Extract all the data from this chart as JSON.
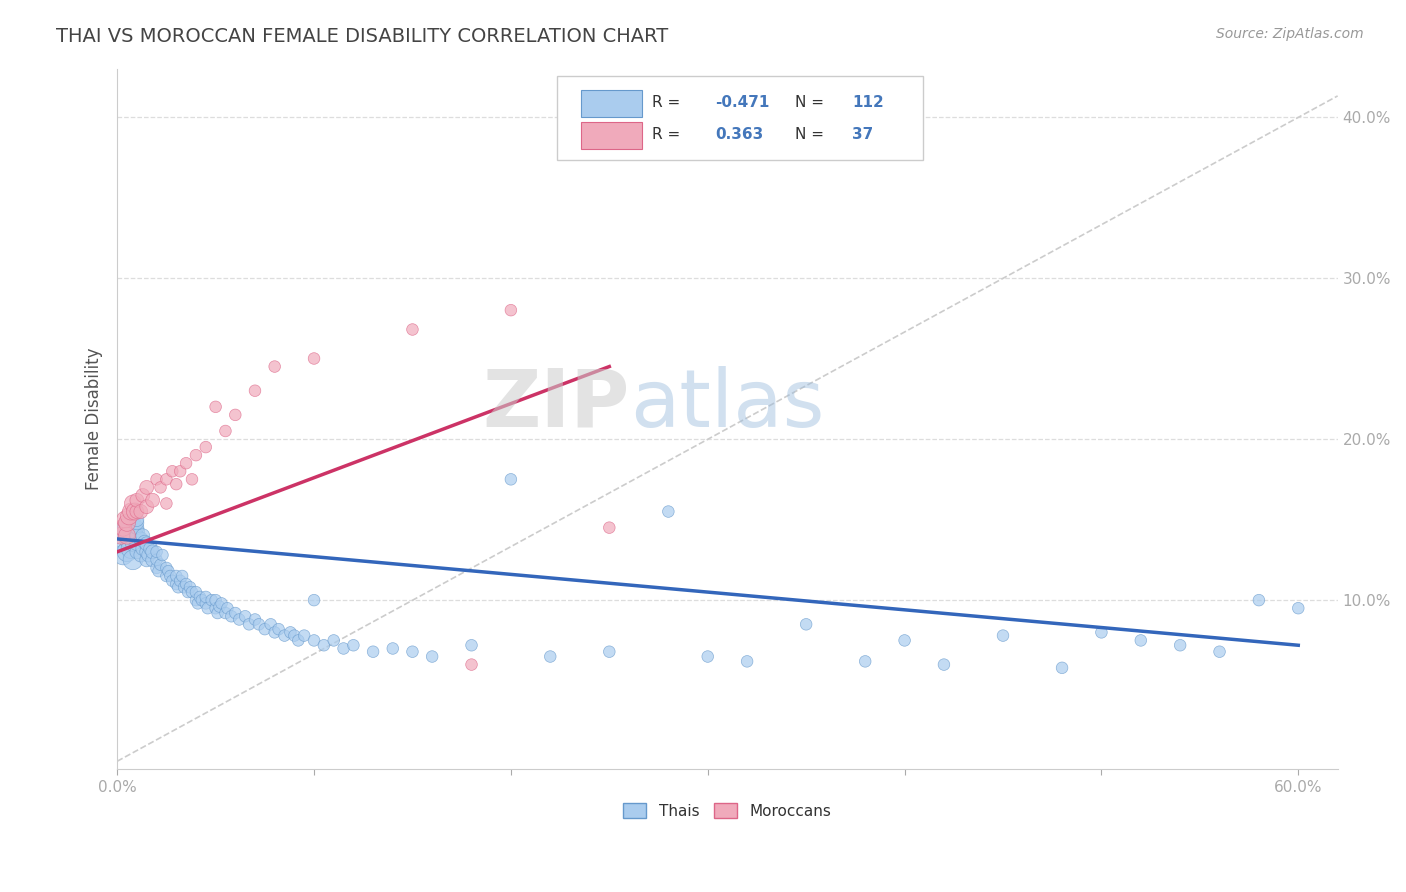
{
  "title": "THAI VS MOROCCAN FEMALE DISABILITY CORRELATION CHART",
  "source_text": "Source: ZipAtlas.com",
  "ylabel": "Female Disability",
  "xlim": [
    0.0,
    0.62
  ],
  "ylim": [
    -0.005,
    0.43
  ],
  "xticks": [
    0.0,
    0.1,
    0.2,
    0.3,
    0.4,
    0.5,
    0.6
  ],
  "xticklabels": [
    "0.0%",
    "",
    "",
    "",
    "",
    "",
    "60.0%"
  ],
  "ytick_positions": [
    0.1,
    0.2,
    0.3,
    0.4
  ],
  "ytick_labels": [
    "10.0%",
    "20.0%",
    "30.0%",
    "40.0%"
  ],
  "thai_color": "#aaccee",
  "moroccan_color": "#f0aabb",
  "thai_edge_color": "#6699cc",
  "moroccan_edge_color": "#dd6688",
  "thai_line_color": "#3366bb",
  "moroccan_line_color": "#cc3366",
  "legend_R1": "-0.471",
  "legend_N1": "112",
  "legend_R2": "0.363",
  "legend_N2": "37",
  "watermark_zip": "ZIP",
  "watermark_atlas": "atlas",
  "background_color": "#ffffff",
  "title_color": "#444444",
  "axis_color": "#4477bb",
  "grid_color": "#dddddd",
  "diag_color": "#cccccc",
  "thai_scatter_x": [
    0.002,
    0.003,
    0.004,
    0.005,
    0.005,
    0.006,
    0.007,
    0.007,
    0.008,
    0.008,
    0.009,
    0.009,
    0.01,
    0.01,
    0.01,
    0.01,
    0.01,
    0.01,
    0.012,
    0.012,
    0.013,
    0.013,
    0.014,
    0.015,
    0.015,
    0.015,
    0.016,
    0.017,
    0.018,
    0.018,
    0.02,
    0.02,
    0.02,
    0.021,
    0.022,
    0.023,
    0.025,
    0.025,
    0.026,
    0.027,
    0.028,
    0.03,
    0.03,
    0.031,
    0.032,
    0.033,
    0.034,
    0.035,
    0.036,
    0.037,
    0.038,
    0.04,
    0.04,
    0.041,
    0.042,
    0.043,
    0.045,
    0.045,
    0.046,
    0.048,
    0.05,
    0.05,
    0.051,
    0.052,
    0.053,
    0.055,
    0.056,
    0.058,
    0.06,
    0.062,
    0.065,
    0.067,
    0.07,
    0.072,
    0.075,
    0.078,
    0.08,
    0.082,
    0.085,
    0.088,
    0.09,
    0.092,
    0.095,
    0.1,
    0.1,
    0.105,
    0.11,
    0.115,
    0.12,
    0.13,
    0.14,
    0.15,
    0.16,
    0.18,
    0.2,
    0.22,
    0.25,
    0.28,
    0.3,
    0.32,
    0.35,
    0.38,
    0.4,
    0.42,
    0.45,
    0.48,
    0.5,
    0.52,
    0.54,
    0.56,
    0.58,
    0.6
  ],
  "thai_scatter_y": [
    0.135,
    0.128,
    0.142,
    0.13,
    0.145,
    0.138,
    0.132,
    0.148,
    0.125,
    0.14,
    0.136,
    0.142,
    0.13,
    0.135,
    0.14,
    0.145,
    0.148,
    0.15,
    0.128,
    0.138,
    0.132,
    0.14,
    0.136,
    0.125,
    0.13,
    0.135,
    0.128,
    0.132,
    0.125,
    0.13,
    0.12,
    0.125,
    0.13,
    0.118,
    0.122,
    0.128,
    0.115,
    0.12,
    0.118,
    0.115,
    0.112,
    0.11,
    0.115,
    0.108,
    0.112,
    0.115,
    0.108,
    0.11,
    0.105,
    0.108,
    0.105,
    0.1,
    0.105,
    0.098,
    0.102,
    0.1,
    0.098,
    0.102,
    0.095,
    0.1,
    0.095,
    0.1,
    0.092,
    0.096,
    0.098,
    0.092,
    0.095,
    0.09,
    0.092,
    0.088,
    0.09,
    0.085,
    0.088,
    0.085,
    0.082,
    0.085,
    0.08,
    0.082,
    0.078,
    0.08,
    0.078,
    0.075,
    0.078,
    0.075,
    0.1,
    0.072,
    0.075,
    0.07,
    0.072,
    0.068,
    0.07,
    0.068,
    0.065,
    0.072,
    0.175,
    0.065,
    0.068,
    0.155,
    0.065,
    0.062,
    0.085,
    0.062,
    0.075,
    0.06,
    0.078,
    0.058,
    0.08,
    0.075,
    0.072,
    0.068,
    0.1,
    0.095
  ],
  "moroccan_scatter_x": [
    0.002,
    0.003,
    0.004,
    0.005,
    0.005,
    0.006,
    0.007,
    0.008,
    0.009,
    0.01,
    0.01,
    0.012,
    0.013,
    0.015,
    0.015,
    0.018,
    0.02,
    0.022,
    0.025,
    0.025,
    0.028,
    0.03,
    0.032,
    0.035,
    0.038,
    0.04,
    0.045,
    0.05,
    0.055,
    0.06,
    0.07,
    0.08,
    0.1,
    0.15,
    0.18,
    0.2,
    0.25
  ],
  "moroccan_scatter_y": [
    0.14,
    0.145,
    0.15,
    0.14,
    0.148,
    0.152,
    0.155,
    0.16,
    0.155,
    0.155,
    0.162,
    0.155,
    0.165,
    0.158,
    0.17,
    0.162,
    0.175,
    0.17,
    0.16,
    0.175,
    0.18,
    0.172,
    0.18,
    0.185,
    0.175,
    0.19,
    0.195,
    0.22,
    0.205,
    0.215,
    0.23,
    0.245,
    0.25,
    0.268,
    0.06,
    0.28,
    0.145
  ],
  "thai_line_x": [
    0.0,
    0.6
  ],
  "thai_line_y": [
    0.138,
    0.072
  ],
  "moroccan_line_x": [
    0.0,
    0.25
  ],
  "moroccan_line_y": [
    0.13,
    0.245
  ],
  "diag_line_x": [
    0.0,
    0.62
  ],
  "diag_line_y": [
    0.0,
    0.413
  ]
}
